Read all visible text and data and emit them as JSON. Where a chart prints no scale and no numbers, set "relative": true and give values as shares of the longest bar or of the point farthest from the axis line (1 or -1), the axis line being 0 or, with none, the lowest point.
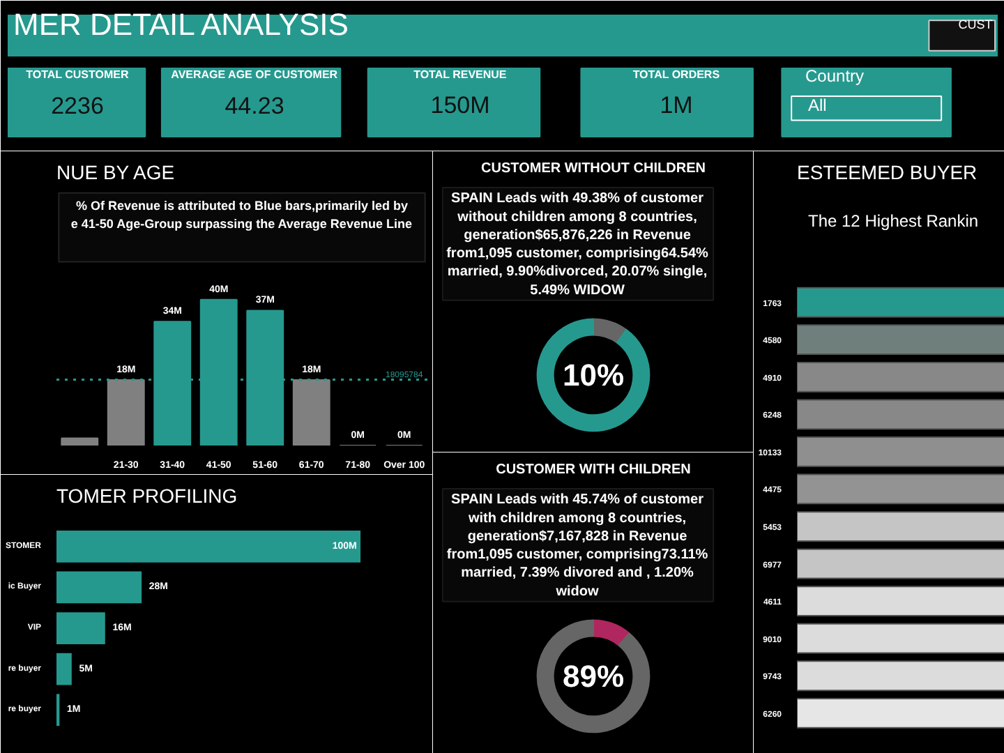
{
  "chart_data": [
    {
      "type": "other",
      "title": "MER DETAIL ANALYSIS",
      "categories": [
        "TOTAL CUSTOMER",
        "AVERAGE AGE OF CUSTOMER",
        "TOTAL REVENUE",
        "TOTAL ORDERS"
      ],
      "value_labels": [
        "2236",
        "44.23",
        "150M",
        "1M"
      ],
      "annotations": [
        "Country",
        "All",
        "CUST"
      ],
      "color": "#26998f"
    },
    {
      "type": "bar",
      "title": "NUE BY AGE",
      "categories": [
        null,
        "21-30",
        "31-40",
        "41-50",
        "51-60",
        "61-70",
        "71-80",
        "Over 100"
      ],
      "values": [
        2,
        18,
        34,
        40,
        37,
        18,
        0,
        0
      ],
      "colors": [
        "#808080",
        "#808080",
        "#26998f",
        "#26998f",
        "#26998f",
        "#808080",
        "#808080",
        "#808080"
      ],
      "value_labels": [
        null,
        "18M",
        "34M",
        "40M",
        "37M",
        "18M",
        "0M",
        "0M"
      ],
      "ref_lines": [
        {
          "axis": "y",
          "value": 18.095784,
          "label": "18095784",
          "color": "#26998f",
          "line_style": "dotted"
        }
      ],
      "annotations": [
        "% Of Revenue is attributed to Blue bars,primarily led by e 41-50 Age-Group surpassing the Average Revenue Line"
      ],
      "relative": false
    },
    {
      "type": "bar",
      "orientation": "horizontal",
      "title": "TOMER PROFILING",
      "categories": [
        "STOMER",
        "ic Buyer",
        "VIP",
        "re buyer",
        "re buyer"
      ],
      "values": [
        100,
        28,
        16,
        5,
        1
      ],
      "color": "#26998f",
      "value_labels": [
        "100M",
        "28M",
        "16M",
        "5M",
        "1M"
      ]
    },
    {
      "type": "donut",
      "title": "CUSTOMER WITHOUT CHILDREN",
      "subtitle": "SPAIN Leads with 49.38% of customer without children among 8 countries, generation$65,876,226 in Revenue from1,095 customer, comprising64.54% married, 9.90%divorced, 20.07% single, 5.49% WIDOW",
      "categories": [
        null,
        null
      ],
      "values": [
        10,
        90
      ],
      "colors": [
        "#666666",
        "#26998f"
      ],
      "annotations": [
        "10%"
      ]
    },
    {
      "type": "donut",
      "title": "CUSTOMER WITH CHILDREN",
      "subtitle": "SPAIN Leads with 45.74% of customer with children among 8 countries, generation$7,167,828 in Revenue from1,095 customer, comprising73.11% married, 7.39% divored and , 1.20% widow",
      "categories": [
        null,
        null
      ],
      "values": [
        11,
        89
      ],
      "colors": [
        "#b0275f",
        "#666666"
      ],
      "annotations": [
        "89%"
      ]
    },
    {
      "type": "bar",
      "orientation": "horizontal",
      "relative": true,
      "title": "ESTEEMED BUYER",
      "subtitle": "The 12 Highest Rankin",
      "categories": [
        "1763",
        "4580",
        "4910",
        "6248",
        "10133",
        "4475",
        "5453",
        "6977",
        "4611",
        "9010",
        "9743",
        "6260"
      ],
      "values": [
        1,
        1,
        1,
        1,
        1,
        1,
        1,
        1,
        1,
        1,
        1,
        1
      ],
      "colors": [
        "#26998f",
        "#6f7f7c",
        "#888888",
        "#888888",
        "#8f8f8f",
        "#939393",
        "#c5c5c5",
        "#c5c5c5",
        "#dcdcdc",
        "#dcdcdc",
        "#dcdcdc",
        "#e6e6e6"
      ]
    }
  ]
}
